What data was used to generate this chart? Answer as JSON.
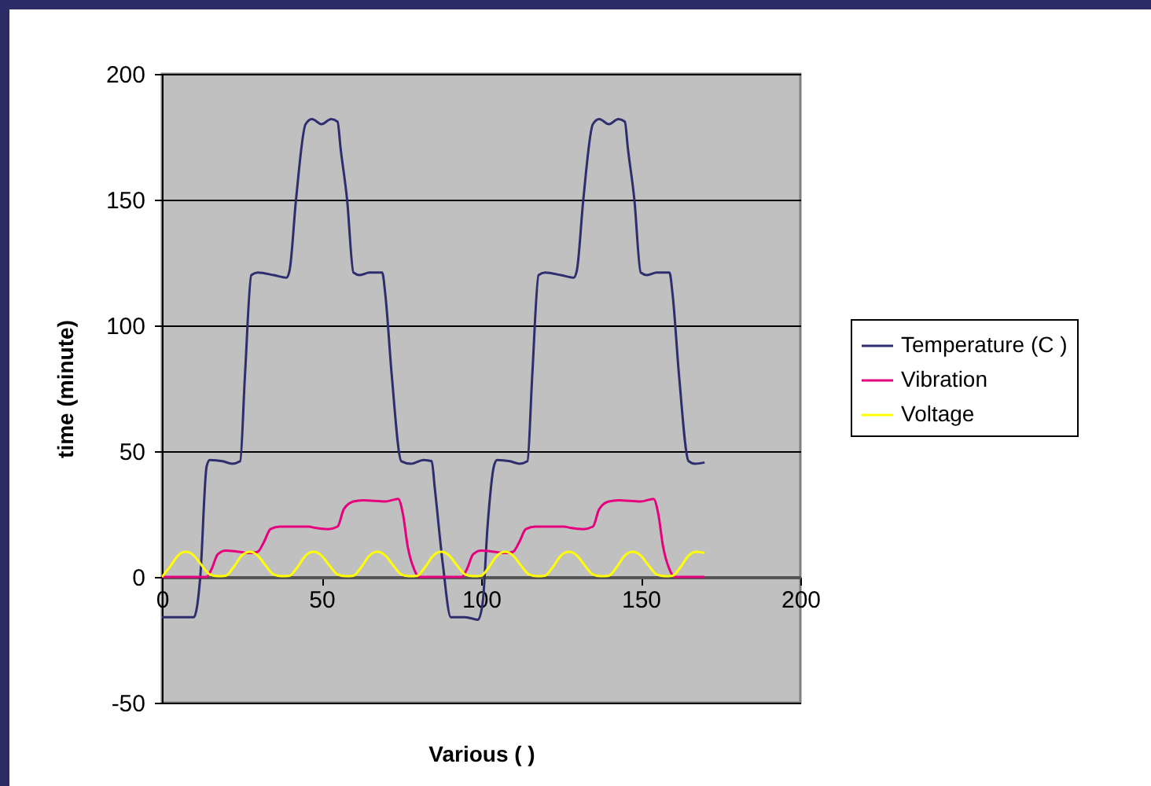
{
  "chart_data": {
    "type": "line",
    "xlabel": "Various ( )",
    "ylabel": "time (minute)",
    "xlim": [
      0,
      200
    ],
    "xticks": [
      0,
      50,
      100,
      150,
      200
    ],
    "ylim": [
      -50,
      200
    ],
    "yticks": [
      -50,
      0,
      50,
      100,
      150,
      200
    ],
    "grid": "y",
    "legend": "right",
    "series": [
      {
        "name": "Temperature (C )",
        "color": "#2e2e6e",
        "x": [
          0,
          10,
          12,
          14,
          15,
          19,
          22,
          24.5,
          26,
          28,
          30,
          35,
          39,
          40,
          42,
          45,
          47,
          50,
          53,
          55,
          56,
          58,
          60,
          62,
          65,
          69,
          70,
          72,
          75,
          78,
          82,
          84.5,
          85.5,
          88,
          90.5,
          95,
          99,
          100.5,
          102,
          104,
          105,
          109,
          112,
          114.5,
          116,
          118,
          120,
          125,
          129,
          130,
          132,
          135,
          137,
          140,
          143,
          145,
          146,
          148,
          150,
          152,
          155,
          159,
          160,
          162,
          165,
          167,
          170
        ],
        "values": [
          -16,
          -16,
          0,
          44,
          46.5,
          46,
          45,
          46,
          80,
          120,
          121,
          120,
          119,
          122,
          150,
          180,
          182,
          180,
          182,
          181,
          170,
          150,
          121,
          120,
          121,
          121,
          112,
          80,
          46,
          45,
          46.5,
          46,
          35,
          5,
          -16,
          -16,
          -17,
          -10,
          20,
          44,
          46.5,
          46,
          45,
          46,
          80,
          120,
          121,
          120,
          119,
          122,
          150,
          180,
          182,
          180,
          182,
          181,
          170,
          150,
          121,
          120,
          121,
          121,
          112,
          80,
          46,
          45,
          45.5
        ]
      },
      {
        "name": "Vibration",
        "color": "#e6007e",
        "x": [
          0,
          14,
          15.5,
          17.5,
          20,
          24,
          28,
          30,
          32,
          34,
          37,
          42,
          46,
          48,
          52,
          55,
          57,
          60,
          63,
          70,
          74,
          75.5,
          77,
          79,
          80.5,
          94,
          95.5,
          97.5,
          100,
          104,
          108,
          110,
          112,
          114,
          117,
          122,
          126,
          128,
          132,
          135,
          137,
          140,
          143,
          150,
          154,
          155.5,
          157,
          159,
          160.5,
          170
        ],
        "values": [
          0,
          0,
          3,
          9,
          10.5,
          10,
          9.5,
          10,
          14,
          19,
          20,
          20,
          20,
          19.5,
          19,
          20,
          27,
          30,
          30.5,
          30,
          31,
          25,
          12,
          3,
          0,
          0,
          3,
          9,
          10.5,
          10,
          9.5,
          10,
          14,
          19,
          20,
          20,
          20,
          19.5,
          19,
          20,
          27,
          30,
          30.5,
          30,
          31,
          25,
          12,
          3,
          0,
          0
        ]
      },
      {
        "name": "Voltage",
        "color": "#ffff00",
        "x": [
          0,
          2.5,
          5,
          7.5,
          10,
          12.5,
          15,
          17.5,
          20,
          22.5,
          25,
          27.5,
          30,
          32.5,
          35,
          37.5,
          40,
          42.5,
          45,
          47.5,
          50,
          52.5,
          55,
          57.5,
          60,
          62.5,
          65,
          67.5,
          70,
          72.5,
          75,
          77.5,
          80,
          82.5,
          85,
          87.5,
          90,
          92.5,
          95,
          97.5,
          100,
          102.5,
          105,
          107.5,
          110,
          112.5,
          115,
          117.5,
          120,
          122.5,
          125,
          127.5,
          130,
          132.5,
          135,
          137.5,
          140,
          142.5,
          145,
          147.5,
          150,
          152.5,
          155,
          157.5,
          160,
          162.5,
          165,
          167.5,
          170
        ],
        "values": [
          0,
          4,
          8.5,
          10,
          8.5,
          4.5,
          1,
          0.3,
          0.5,
          4,
          8.5,
          10,
          8.5,
          4.5,
          1,
          0.3,
          0.5,
          4,
          8.5,
          10,
          8.5,
          4.5,
          1,
          0.3,
          0.5,
          4,
          8.5,
          10,
          8.5,
          4.5,
          1,
          0.3,
          0.5,
          4,
          8.5,
          10,
          8.5,
          4.5,
          1,
          0.3,
          0.5,
          4,
          8.5,
          10,
          8.5,
          4.5,
          1,
          0.3,
          0.5,
          4,
          8.5,
          10,
          8.5,
          4.5,
          1,
          0.3,
          0.5,
          4,
          8.5,
          10,
          8.5,
          4.5,
          1,
          0.3,
          0.5,
          4,
          8.5,
          10,
          9.5
        ]
      }
    ]
  }
}
